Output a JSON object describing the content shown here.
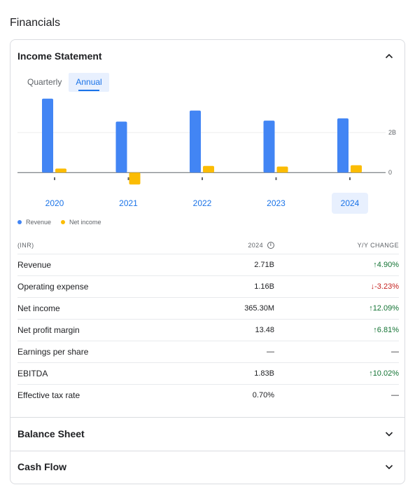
{
  "page_title": "Financials",
  "income_statement": {
    "title": "Income Statement",
    "tabs": [
      {
        "label": "Quarterly",
        "active": false
      },
      {
        "label": "Annual",
        "active": true
      }
    ],
    "legend": [
      {
        "label": "Revenue",
        "color": "#4285f4"
      },
      {
        "label": "Net income",
        "color": "#fbbc04"
      }
    ],
    "selected_year": "2024"
  },
  "chart_data": {
    "type": "bar",
    "categories": [
      "2020",
      "2021",
      "2022",
      "2023",
      "2024"
    ],
    "series": [
      {
        "name": "Revenue",
        "color": "#4285f4",
        "values": [
          3.7,
          2.55,
          3.1,
          2.6,
          2.71
        ]
      },
      {
        "name": "Net income",
        "color": "#fbbc04",
        "values": [
          0.2,
          -0.6,
          0.33,
          0.3,
          0.3653
        ]
      }
    ],
    "y_ticks": [
      {
        "value": 0,
        "label": "0"
      },
      {
        "value": 2,
        "label": "2B"
      }
    ],
    "ylim": [
      -0.8,
      3.9
    ],
    "unit": "B"
  },
  "table": {
    "headers": {
      "currency": "(INR)",
      "year": "2024",
      "change": "Y/Y CHANGE"
    },
    "rows": [
      {
        "label": "Revenue",
        "value": "2.71B",
        "change": "4.90%",
        "dir": "up"
      },
      {
        "label": "Operating expense",
        "value": "1.16B",
        "change": "-3.23%",
        "dir": "down"
      },
      {
        "label": "Net income",
        "value": "365.30M",
        "change": "12.09%",
        "dir": "up"
      },
      {
        "label": "Net profit margin",
        "value": "13.48",
        "change": "6.81%",
        "dir": "up"
      },
      {
        "label": "Earnings per share",
        "value": "—",
        "change": "—",
        "dir": "none"
      },
      {
        "label": "EBITDA",
        "value": "1.83B",
        "change": "10.02%",
        "dir": "up"
      },
      {
        "label": "Effective tax rate",
        "value": "0.70%",
        "change": "—",
        "dir": "none"
      }
    ]
  },
  "balance_sheet": {
    "title": "Balance Sheet"
  },
  "cash_flow": {
    "title": "Cash Flow"
  }
}
